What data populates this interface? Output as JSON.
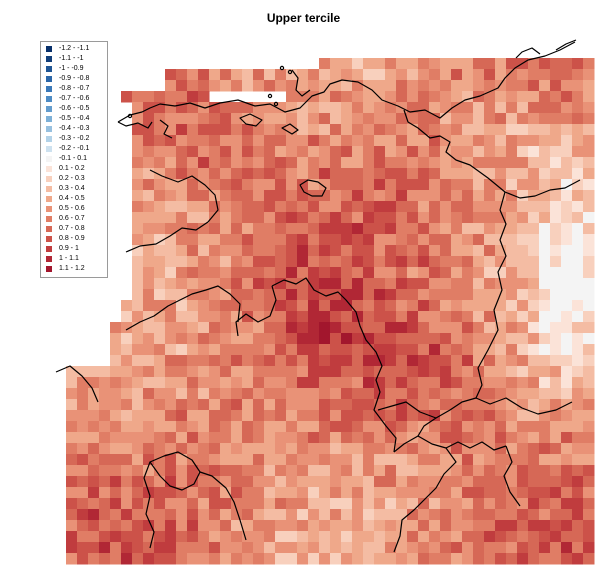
{
  "title": "Upper tercile",
  "legend": {
    "items": [
      {
        "label": "-1.2 - -1.1",
        "color": "#08306b"
      },
      {
        "label": "-1.1 - -1",
        "color": "#123f7a"
      },
      {
        "label": "-1 - -0.9",
        "color": "#1f5594"
      },
      {
        "label": "-0.9 - -0.8",
        "color": "#2b66a8"
      },
      {
        "label": "-0.8 - -0.7",
        "color": "#3a78b8"
      },
      {
        "label": "-0.7 - -0.6",
        "color": "#4d8bc4"
      },
      {
        "label": "-0.6 - -0.5",
        "color": "#639ccd"
      },
      {
        "label": "-0.5 - -0.4",
        "color": "#7db0d7"
      },
      {
        "label": "-0.4 - -0.3",
        "color": "#97c0df"
      },
      {
        "label": "-0.3 - -0.2",
        "color": "#b2d2e8"
      },
      {
        "label": "-0.2 - -0.1",
        "color": "#cde1ef"
      },
      {
        "label": "-0.1 - 0.1",
        "color": "#f4f4f4"
      },
      {
        "label": "0.1 - 0.2",
        "color": "#fbe3d8"
      },
      {
        "label": "0.2 - 0.3",
        "color": "#f8d0bd"
      },
      {
        "label": "0.3 - 0.4",
        "color": "#f4bca3"
      },
      {
        "label": "0.4 - 0.5",
        "color": "#efa88a"
      },
      {
        "label": "0.5 - 0.6",
        "color": "#e99277"
      },
      {
        "label": "0.6 - 0.7",
        "color": "#e07d65"
      },
      {
        "label": "0.7 - 0.8",
        "color": "#d66856"
      },
      {
        "label": "0.8 - 0.9",
        "color": "#cc5249"
      },
      {
        "label": "0.9 - 1",
        "color": "#c03c3e"
      },
      {
        "label": "1 - 1.1",
        "color": "#b12735"
      },
      {
        "label": "1.1 - 1.2",
        "color": "#a2162d"
      }
    ]
  }
}
